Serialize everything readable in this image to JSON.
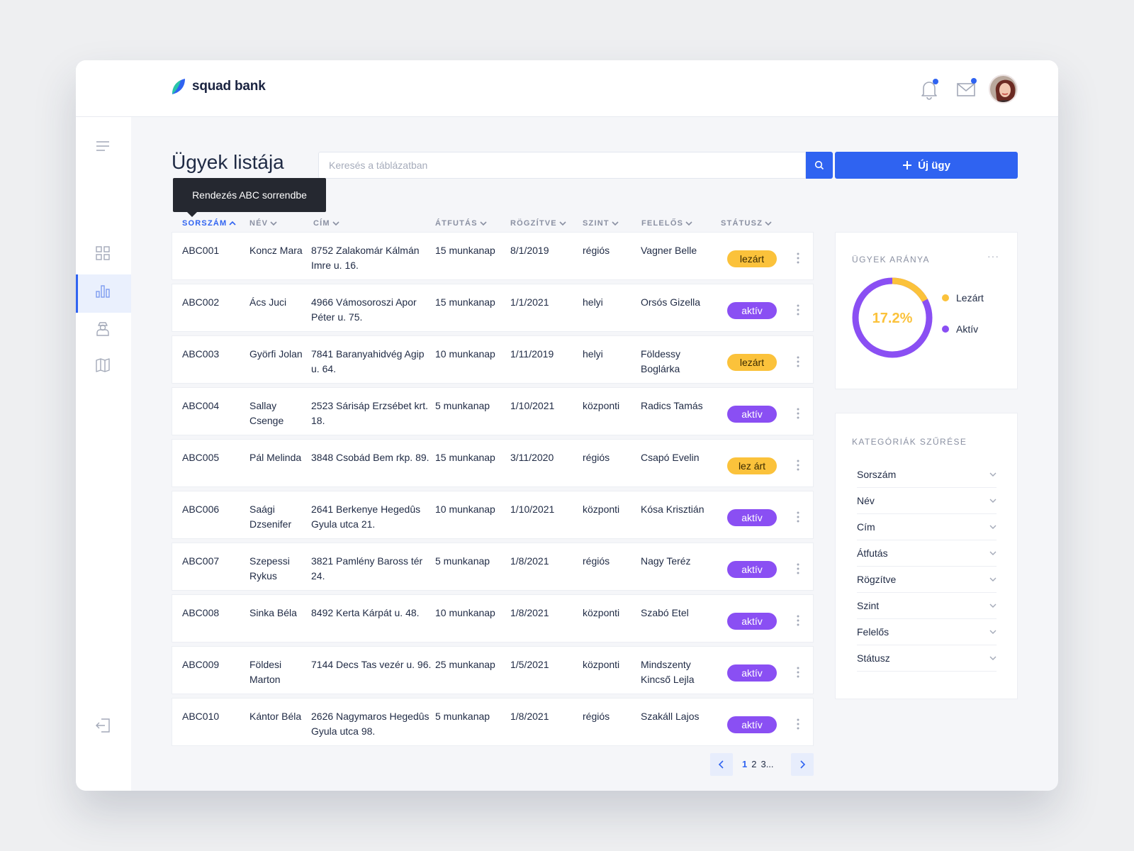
{
  "brand": {
    "name": "squad bank"
  },
  "page": {
    "title": "Ügyek listája"
  },
  "search": {
    "placeholder": "Keresés a táblázatban"
  },
  "actions": {
    "new_case": "Új ügy"
  },
  "tooltip": {
    "text": "Rendezés ABC sorrendbe"
  },
  "table": {
    "headers": [
      "SORSZÁM",
      "NÉV",
      "CÍM",
      "ÁTFUTÁS",
      "RÖGZÍTVE",
      "SZINT",
      "FELELŐS",
      "STÁTUSZ"
    ],
    "rows": [
      {
        "id": "ABC001",
        "name": "Koncz Mara",
        "address": "8752 Zalakomár Kálmán Imre u. 16.",
        "duration": "15 munkanap",
        "recorded": "8/1/2019",
        "level": "régiós",
        "owner": "Vagner Belle",
        "status": "lezárt"
      },
      {
        "id": "ABC002",
        "name": "Ács Juci",
        "address": "4966 Vámosoroszi Apor Péter u. 75.",
        "duration": "15 munkanap",
        "recorded": "1/1/2021",
        "level": "helyi",
        "owner": "Orsós Gizella",
        "status": "aktív"
      },
      {
        "id": "ABC003",
        "name": "Györfi Jolan",
        "address": "7841 Baranyahidvég Agip u. 64.",
        "duration": "10 munkanap",
        "recorded": "1/11/2019",
        "level": "helyi",
        "owner": "Földessy Boglárka",
        "status": "lezárt"
      },
      {
        "id": "ABC004",
        "name": "Sallay Csenge",
        "address": "2523 Sárisáp Erzsébet krt. 18.",
        "duration": "5 munkanap",
        "recorded": "1/10/2021",
        "level": "központi",
        "owner": "Radics Tamás",
        "status": "aktív"
      },
      {
        "id": "ABC005",
        "name": "Pál Melinda",
        "address": "3848 Csobád Bem rkp. 89.",
        "duration": "15 munkanap",
        "recorded": "3/11/2020",
        "level": "régiós",
        "owner": "Csapó Evelin",
        "status": "lez árt"
      },
      {
        "id": "ABC006",
        "name": "Saági Dzsenifer",
        "address": "2641 Berkenye Hegedûs Gyula utca 21.",
        "duration": "10 munkanap",
        "recorded": "1/10/2021",
        "level": "központi",
        "owner": "Kósa Krisztián",
        "status": "aktív"
      },
      {
        "id": "ABC007",
        "name": "Szepessi Rykus",
        "address": "3821 Pamlény Baross tér 24.",
        "duration": "5 munkanap",
        "recorded": "1/8/2021",
        "level": "régiós",
        "owner": "Nagy Teréz",
        "status": "aktív"
      },
      {
        "id": "ABC008",
        "name": "Sinka Béla",
        "address": "8492 Kerta Kárpát u. 48.",
        "duration": "10 munkanap",
        "recorded": "1/8/2021",
        "level": "központi",
        "owner": "Szabó Etel",
        "status": "aktív"
      },
      {
        "id": "ABC009",
        "name": "Földesi Marton",
        "address": "7144 Decs Tas vezér u. 96.",
        "duration": "25 munkanap",
        "recorded": "1/5/2021",
        "level": "központi",
        "owner": "Mindszenty Kincső Lejla",
        "status": "aktív"
      },
      {
        "id": "ABC010",
        "name": "Kántor Béla",
        "address": "2626 Nagymaros Hegedûs Gyula utca 98.",
        "duration": "5 munkanap",
        "recorded": "1/8/2021",
        "level": "régiós",
        "owner": "Szakáll Lajos",
        "status": "aktív"
      }
    ]
  },
  "pagination": {
    "pages": [
      "1",
      "2",
      "3..."
    ],
    "current": "1"
  },
  "ratio_card": {
    "title": "ÜGYEK ARÁNYA",
    "value_label": "17.2%",
    "closed_fraction": 0.172,
    "legend": [
      {
        "label": "Lezárt",
        "color": "#fbc23b"
      },
      {
        "label": "Aktív",
        "color": "#8a4ff3"
      }
    ]
  },
  "filter_card": {
    "title": "KATEGÓRIÁK SZŰRÉSE",
    "items": [
      "Sorszám",
      "Név",
      "Cím",
      "Átfutás",
      "Rögzítve",
      "Szint",
      "Felelős",
      "Státusz"
    ]
  },
  "colors": {
    "accent": "#2f63f1",
    "closed": "#fbc23b",
    "active": "#8a4ff3"
  }
}
